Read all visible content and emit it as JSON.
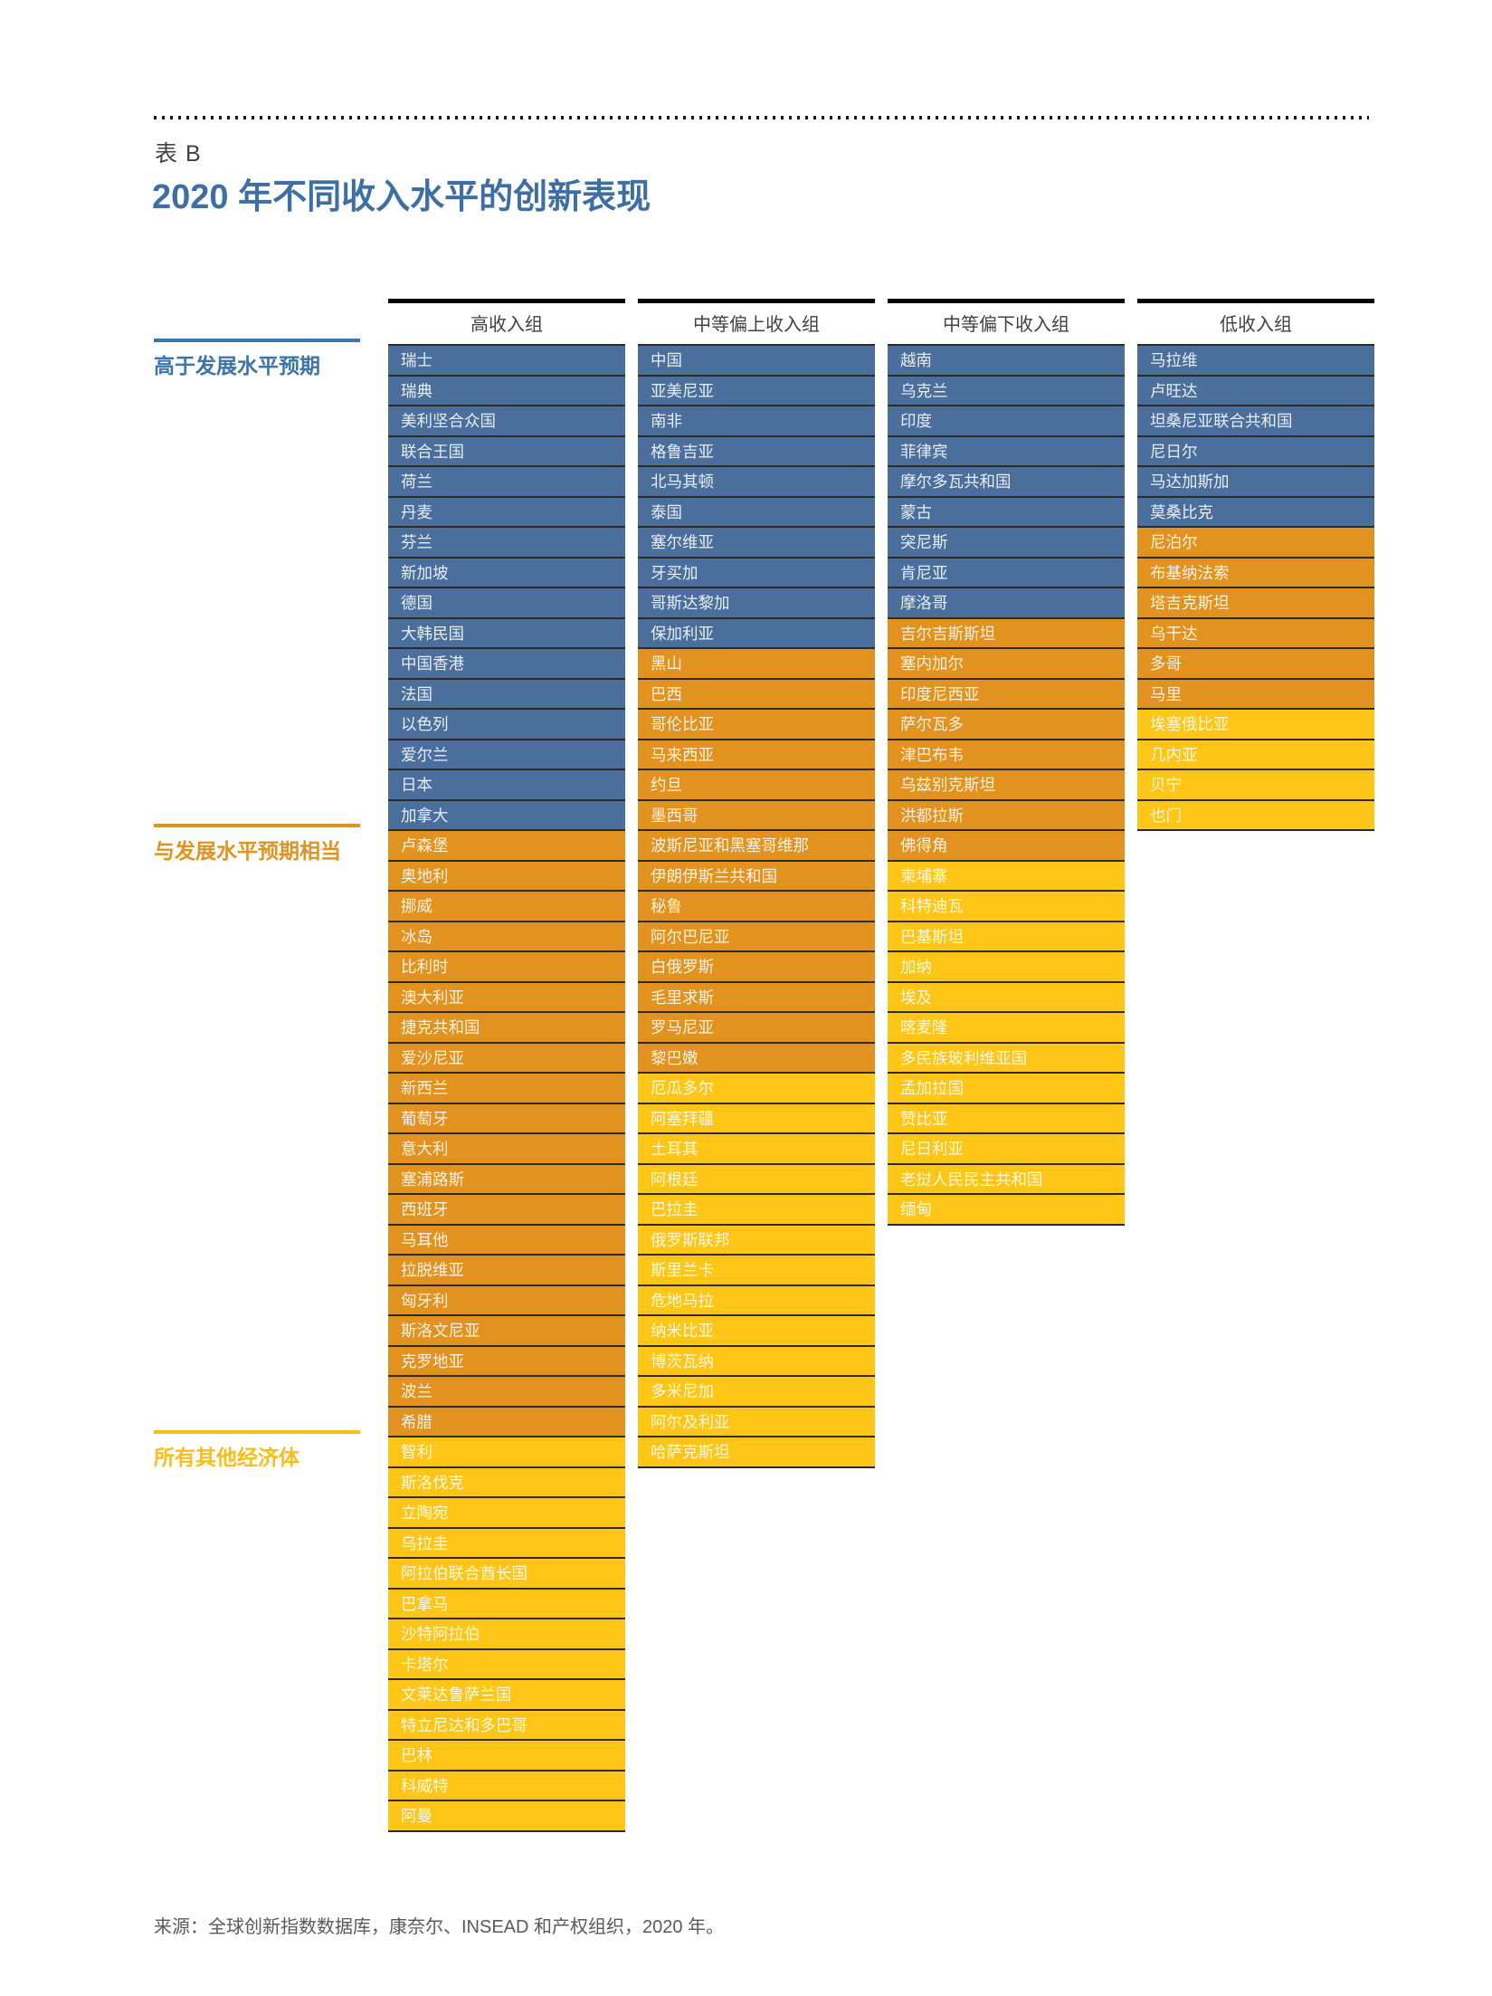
{
  "page": {
    "table_label": "表 B",
    "title": "2020 年不同收入水平的创新表现",
    "source": "来源：全球创新指数数据库，康奈尔、INSEAD 和产权组织，2020 年。"
  },
  "colors": {
    "blue": "#4a6f9c",
    "orange": "#e2921f",
    "yellow": "#ffc517",
    "title_blue": "#3d6fa5",
    "separator": "#2f2a22",
    "header_bar": "#000000",
    "label_blue": "#3c74ac",
    "label_orange": "#e2931f",
    "label_yellow": "#fdbd16"
  },
  "row_groups": [
    {
      "key": "above_expectations",
      "label": "高于发展水平预期",
      "color": "#3c74ac"
    },
    {
      "key": "in_line_with_expectations",
      "label": "与发展水平预期相当",
      "color": "#e2931f"
    },
    {
      "key": "all_other_economies",
      "label": "所有其他经济体",
      "color": "#fdbd16"
    }
  ],
  "chart_data": {
    "type": "table",
    "title": "2020 年不同收入水平的创新表现",
    "legend": {
      "above_expectations": "高于发展水平预期",
      "in_line_with_expectations": "与发展水平预期相当",
      "all_other_economies": "所有其他经济体"
    },
    "columns": [
      {
        "header": "高收入组",
        "groups": {
          "above_expectations": [
            "瑞士",
            "瑞典",
            "美利坚合众国",
            "联合王国",
            "荷兰",
            "丹麦",
            "芬兰",
            "新加坡",
            "德国",
            "大韩民国",
            "中国香港",
            "法国",
            "以色列",
            "爱尔兰",
            "日本",
            "加拿大"
          ],
          "in_line_with_expectations": [
            "卢森堡",
            "奥地利",
            "挪威",
            "冰岛",
            "比利时",
            "澳大利亚",
            "捷克共和国",
            "爱沙尼亚",
            "新西兰",
            "葡萄牙",
            "意大利",
            "塞浦路斯",
            "西班牙",
            "马耳他",
            "拉脱维亚",
            "匈牙利",
            "斯洛文尼亚",
            "克罗地亚",
            "波兰",
            "希腊"
          ],
          "all_other_economies": [
            "智利",
            "斯洛伐克",
            "立陶宛",
            "乌拉圭",
            "阿拉伯联合酋长国",
            "巴拿马",
            "沙特阿拉伯",
            "卡塔尔",
            "文莱达鲁萨兰国",
            "特立尼达和多巴哥",
            "巴林",
            "科威特",
            "阿曼"
          ]
        }
      },
      {
        "header": "中等偏上收入组",
        "groups": {
          "above_expectations": [
            "中国",
            "亚美尼亚",
            "南非",
            "格鲁吉亚",
            "北马其顿",
            "泰国",
            "塞尔维亚",
            "牙买加",
            "哥斯达黎加",
            "保加利亚"
          ],
          "in_line_with_expectations": [
            "黑山",
            "巴西",
            "哥伦比亚",
            "马来西亚",
            "约旦",
            "墨西哥",
            "波斯尼亚和黑塞哥维那",
            "伊朗伊斯兰共和国",
            "秘鲁",
            "阿尔巴尼亚",
            "白俄罗斯",
            "毛里求斯",
            "罗马尼亚",
            "黎巴嫩"
          ],
          "all_other_economies": [
            "厄瓜多尔",
            "阿塞拜疆",
            "土耳其",
            "阿根廷",
            "巴拉圭",
            "俄罗斯联邦",
            "斯里兰卡",
            "危地马拉",
            "纳米比亚",
            "博茨瓦纳",
            "多米尼加",
            "阿尔及利亚",
            "哈萨克斯坦"
          ]
        }
      },
      {
        "header": "中等偏下收入组",
        "groups": {
          "above_expectations": [
            "越南",
            "乌克兰",
            "印度",
            "菲律宾",
            "摩尔多瓦共和国",
            "蒙古",
            "突尼斯",
            "肯尼亚",
            "摩洛哥"
          ],
          "in_line_with_expectations": [
            "吉尔吉斯斯坦",
            "塞内加尔",
            "印度尼西亚",
            "萨尔瓦多",
            "津巴布韦",
            "乌兹别克斯坦",
            "洪都拉斯",
            "佛得角"
          ],
          "all_other_economies": [
            "柬埔寨",
            "科特迪瓦",
            "巴基斯坦",
            "加纳",
            "埃及",
            "喀麦隆",
            "多民族玻利维亚国",
            "孟加拉国",
            "赞比亚",
            "尼日利亚",
            "老挝人民民主共和国",
            "缅甸"
          ]
        }
      },
      {
        "header": "低收入组",
        "groups": {
          "above_expectations": [
            "马拉维",
            "卢旺达",
            "坦桑尼亚联合共和国",
            "尼日尔",
            "马达加斯加",
            "莫桑比克"
          ],
          "in_line_with_expectations": [
            "尼泊尔",
            "布基纳法索",
            "塔吉克斯坦",
            "乌干达",
            "多哥",
            "马里"
          ],
          "all_other_economies": [
            "埃塞俄比亚",
            "几内亚",
            "贝宁",
            "也门"
          ]
        }
      }
    ]
  }
}
